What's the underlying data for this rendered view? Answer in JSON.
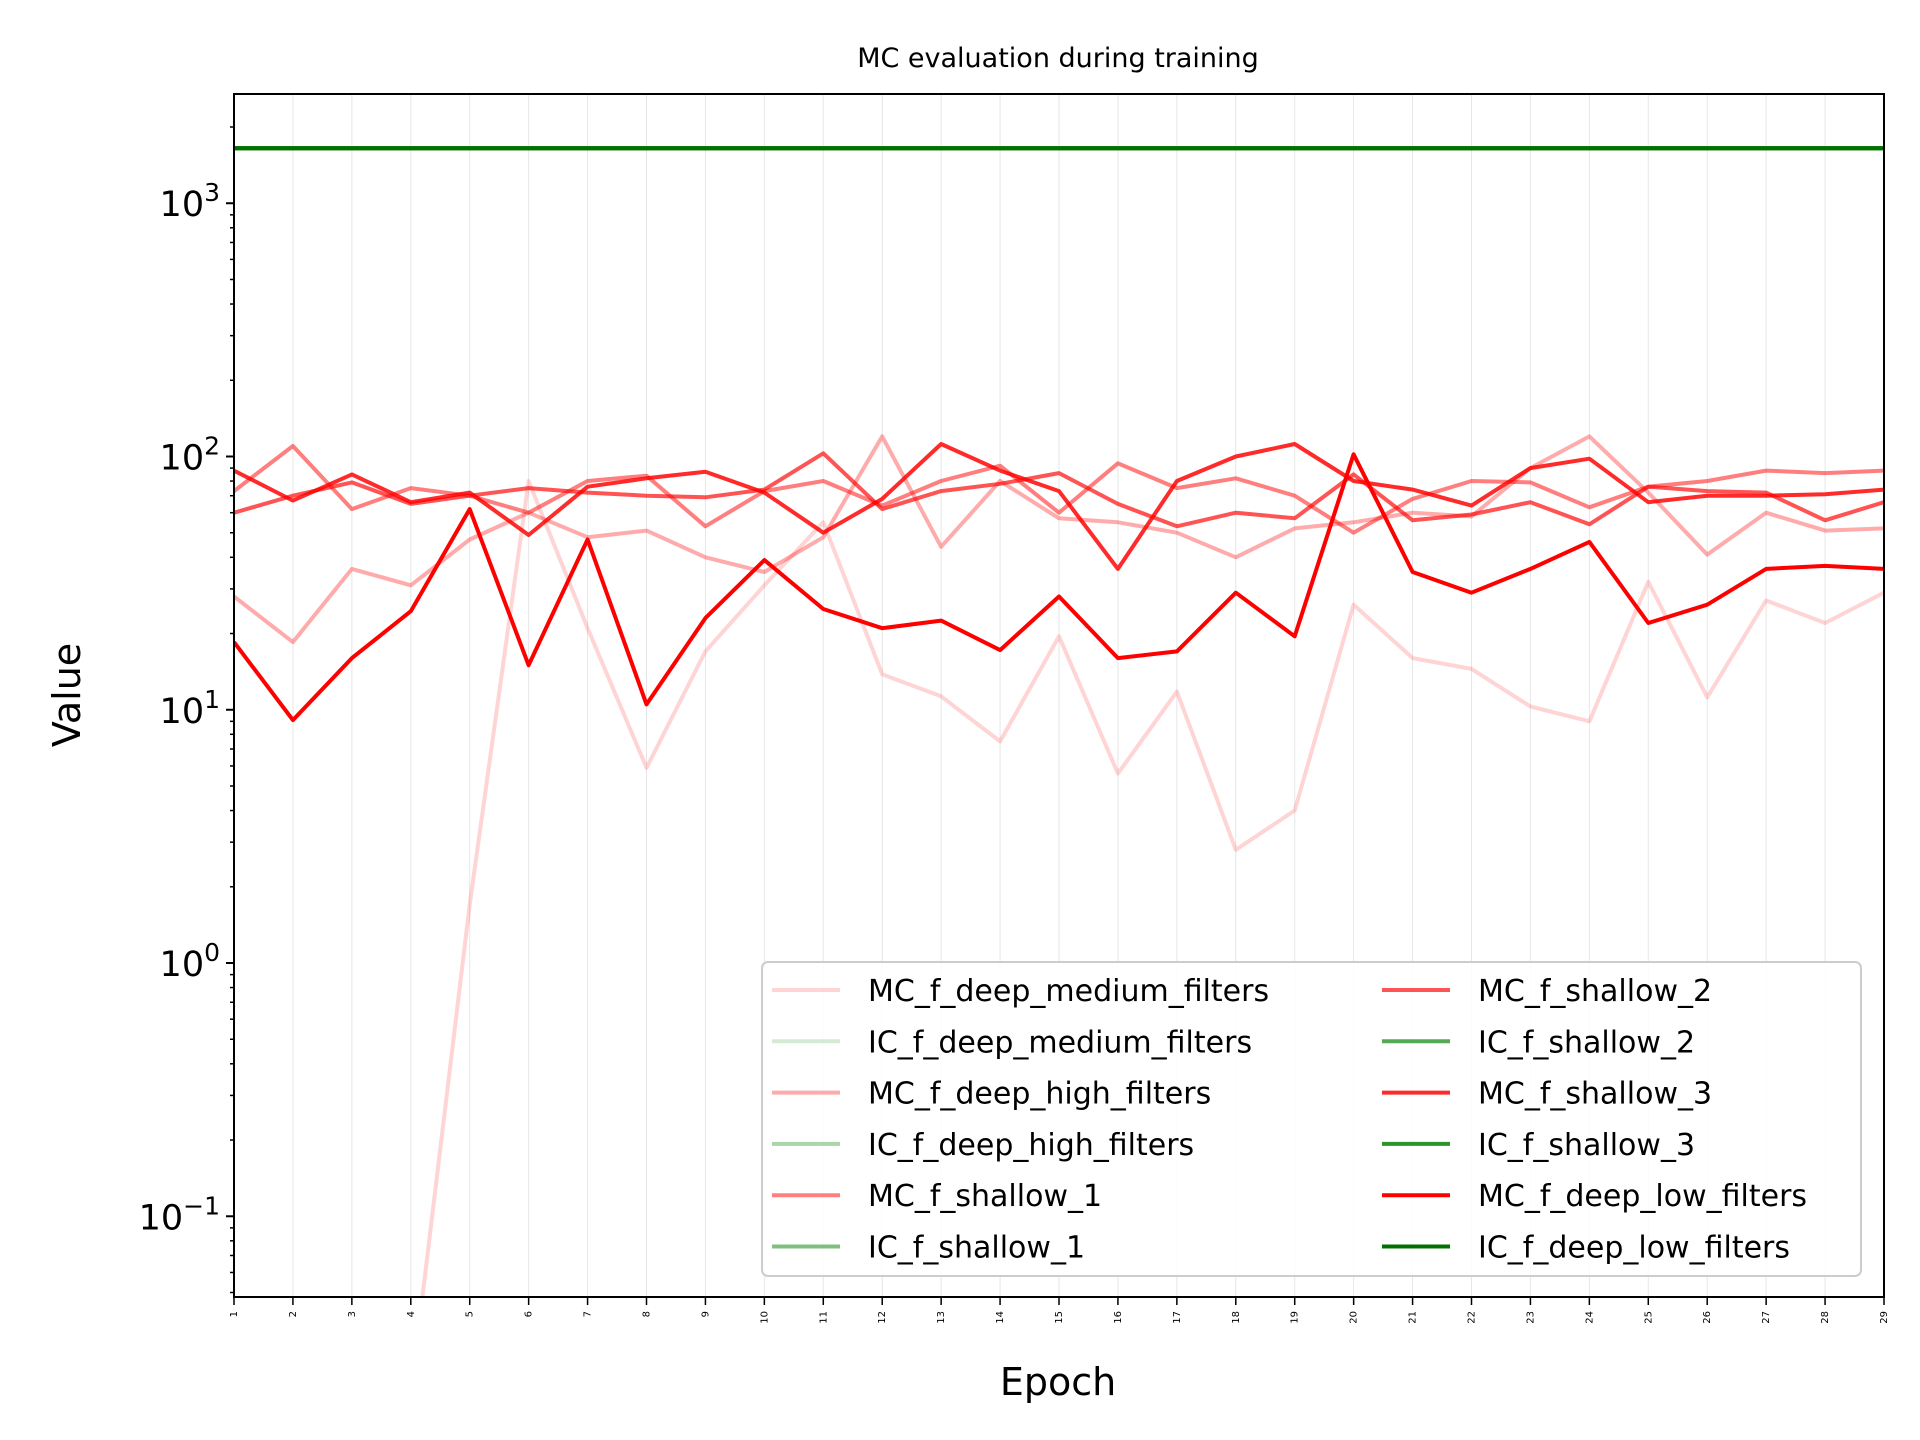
{
  "chart_data": {
    "type": "line",
    "title": "MC evaluation during training",
    "xlabel": "Epoch",
    "ylabel": "Value",
    "yscale": "log",
    "ylim": [
      0.048,
      2700
    ],
    "xlim": [
      1,
      29
    ],
    "grid": "vertical lines at each epoch (light)",
    "legend_placement": "lower-right, 2 columns",
    "x": [
      1,
      2,
      3,
      4,
      5,
      6,
      7,
      8,
      9,
      10,
      11,
      12,
      13,
      14,
      15,
      16,
      17,
      18,
      19,
      20,
      21,
      22,
      23,
      24,
      25,
      26,
      27,
      28,
      29
    ],
    "y_ticks": [
      {
        "value": 0.1,
        "base": "10",
        "exp": "−1"
      },
      {
        "value": 1,
        "base": "10",
        "exp": "0"
      },
      {
        "value": 10,
        "base": "10",
        "exp": "1"
      },
      {
        "value": 100,
        "base": "10",
        "exp": "2"
      },
      {
        "value": 1000,
        "base": "10",
        "exp": "3"
      }
    ],
    "series": [
      {
        "name": "MC_f_deep_medium_filters",
        "color": "#ff0000",
        "opacity": 0.17,
        "values": [
          null,
          null,
          null,
          0.02,
          1.7,
          80,
          21,
          5.9,
          17,
          31,
          55,
          13.8,
          11.3,
          7.5,
          19.5,
          5.6,
          11.8,
          2.8,
          4,
          26,
          16,
          14.5,
          10.3,
          9,
          32,
          11.2,
          27,
          22,
          29
        ]
      },
      {
        "name": "IC_f_deep_medium_filters",
        "color": "#008000",
        "opacity": 0.17,
        "values": [
          1650,
          1650,
          1650,
          1650,
          1650,
          1650,
          1650,
          1650,
          1650,
          1650,
          1650,
          1650,
          1650,
          1650,
          1650,
          1650,
          1650,
          1650,
          1650,
          1650,
          1650,
          1650,
          1650,
          1650,
          1650,
          1650,
          1650,
          1650,
          1650
        ]
      },
      {
        "name": "MC_f_deep_high_filters",
        "color": "#ff0000",
        "opacity": 0.33,
        "values": [
          28,
          18.5,
          36,
          31,
          47,
          60,
          48,
          51,
          40,
          35,
          48,
          120,
          44,
          80,
          57,
          55,
          50,
          40,
          52,
          55,
          60,
          58,
          90,
          120,
          72,
          41,
          60,
          51,
          52
        ]
      },
      {
        "name": "IC_f_deep_high_filters",
        "color": "#008000",
        "opacity": 0.33,
        "values": [
          1650,
          1650,
          1650,
          1650,
          1650,
          1650,
          1650,
          1650,
          1650,
          1650,
          1650,
          1650,
          1650,
          1650,
          1650,
          1650,
          1650,
          1650,
          1650,
          1650,
          1650,
          1650,
          1650,
          1650,
          1650,
          1650,
          1650,
          1650,
          1650
        ]
      },
      {
        "name": "MC_f_shallow_1",
        "color": "#ff0000",
        "opacity": 0.5,
        "values": [
          73,
          110,
          62,
          75,
          70,
          60,
          80,
          84,
          53,
          73,
          80,
          64,
          80,
          92,
          60,
          94,
          75,
          82,
          70,
          50,
          68,
          80,
          79,
          63,
          76,
          80,
          88,
          86,
          88
        ]
      },
      {
        "name": "IC_f_shallow_1",
        "color": "#008000",
        "opacity": 0.5,
        "values": [
          1650,
          1650,
          1650,
          1650,
          1650,
          1650,
          1650,
          1650,
          1650,
          1650,
          1650,
          1650,
          1650,
          1650,
          1650,
          1650,
          1650,
          1650,
          1650,
          1650,
          1650,
          1650,
          1650,
          1650,
          1650,
          1650,
          1650,
          1650,
          1650
        ]
      },
      {
        "name": "MC_f_shallow_2",
        "color": "#ff0000",
        "opacity": 0.67,
        "values": [
          60,
          70,
          79,
          65,
          70,
          75,
          72,
          70,
          69,
          74,
          103,
          62,
          73,
          78,
          86,
          65,
          53,
          60,
          57,
          85,
          56,
          59,
          66,
          54,
          76,
          73,
          72,
          56,
          66
        ]
      },
      {
        "name": "IC_f_shallow_2",
        "color": "#008000",
        "opacity": 0.67,
        "values": [
          1650,
          1650,
          1650,
          1650,
          1650,
          1650,
          1650,
          1650,
          1650,
          1650,
          1650,
          1650,
          1650,
          1650,
          1650,
          1650,
          1650,
          1650,
          1650,
          1650,
          1650,
          1650,
          1650,
          1650,
          1650,
          1650,
          1650,
          1650,
          1650
        ]
      },
      {
        "name": "MC_f_shallow_3",
        "color": "#ff0000",
        "opacity": 0.83,
        "values": [
          88,
          67,
          85,
          66,
          72,
          49,
          76,
          82,
          87,
          72,
          50,
          68,
          112,
          88,
          73,
          36,
          80,
          100,
          112,
          80,
          74,
          64,
          90,
          98,
          66,
          70,
          70,
          71,
          74
        ]
      },
      {
        "name": "IC_f_shallow_3",
        "color": "#008000",
        "opacity": 0.83,
        "values": [
          1650,
          1650,
          1650,
          1650,
          1650,
          1650,
          1650,
          1650,
          1650,
          1650,
          1650,
          1650,
          1650,
          1650,
          1650,
          1650,
          1650,
          1650,
          1650,
          1650,
          1650,
          1650,
          1650,
          1650,
          1650,
          1650,
          1650,
          1650,
          1650
        ]
      },
      {
        "name": "MC_f_deep_low_filters",
        "color": "#ff0000",
        "opacity": 1.0,
        "values": [
          18.5,
          9.1,
          16,
          24.5,
          62,
          15,
          47,
          10.5,
          23,
          39,
          25,
          21,
          22.5,
          17.2,
          28,
          16,
          17,
          29,
          19.5,
          102,
          35,
          29,
          36,
          46,
          22,
          26,
          36,
          37,
          36
        ]
      },
      {
        "name": "IC_f_deep_low_filters",
        "color": "#007000",
        "opacity": 1.0,
        "values": [
          1650,
          1650,
          1650,
          1650,
          1650,
          1650,
          1650,
          1650,
          1650,
          1650,
          1650,
          1650,
          1650,
          1650,
          1650,
          1650,
          1650,
          1650,
          1650,
          1650,
          1650,
          1650,
          1650,
          1650,
          1650,
          1650,
          1650,
          1650,
          1650
        ]
      }
    ]
  }
}
